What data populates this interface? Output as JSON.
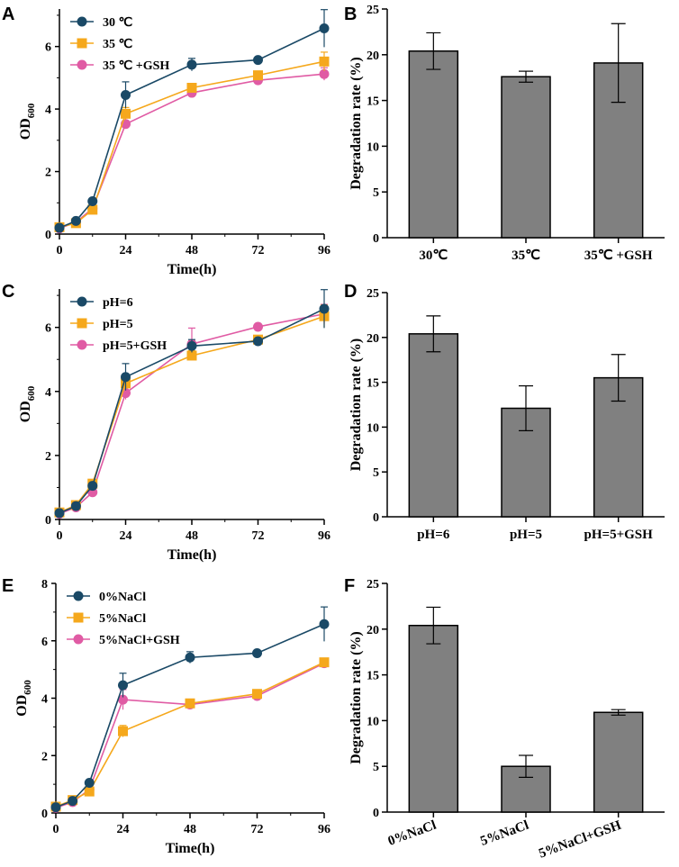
{
  "figure": {
    "panel_letters": [
      "A",
      "B",
      "C",
      "D",
      "E",
      "F"
    ]
  },
  "chart_data": [
    {
      "panel": "A",
      "type": "line",
      "xlabel": "Time(h)",
      "ylabel_main": "OD",
      "ylabel_sub": "600",
      "x": [
        0,
        6,
        12,
        24,
        48,
        72,
        96
      ],
      "xticks": [
        0,
        24,
        48,
        72,
        96
      ],
      "xlim": [
        0,
        96
      ],
      "yticks": [
        0,
        2,
        4,
        6
      ],
      "ylim": [
        0,
        7.2
      ],
      "legend_position": "top-left",
      "series": [
        {
          "name": "30 ℃",
          "color": "#1a4966",
          "marker": "circle",
          "values": [
            0.2,
            0.42,
            1.05,
            4.45,
            5.42,
            5.57,
            6.58
          ],
          "errors": [
            0.05,
            0.05,
            0.08,
            0.42,
            0.2,
            0.06,
            0.6
          ]
        },
        {
          "name": "35 ℃",
          "color": "#f5a81c",
          "marker": "square",
          "values": [
            0.22,
            0.35,
            0.78,
            3.85,
            4.68,
            5.08,
            5.52
          ],
          "errors": [
            0.05,
            0.05,
            0.05,
            0.2,
            0.1,
            0.08,
            0.3
          ]
        },
        {
          "name": "35 ℃ +GSH",
          "color": "#e05ba4",
          "marker": "circle",
          "values": [
            0.18,
            0.38,
            0.82,
            3.52,
            4.52,
            4.92,
            5.12
          ],
          "errors": [
            0.05,
            0.05,
            0.05,
            0.1,
            0.08,
            0.08,
            0.2
          ]
        }
      ]
    },
    {
      "panel": "B",
      "type": "bar",
      "ylabel": "Degradation rate (%)",
      "categories": [
        "30℃",
        "35℃",
        "35℃ +GSH"
      ],
      "values": [
        20.4,
        17.6,
        19.1
      ],
      "errors": [
        2.0,
        0.6,
        4.3
      ],
      "yticks": [
        0,
        5,
        10,
        15,
        20,
        25
      ],
      "ylim": [
        0,
        25
      ],
      "bar_color": "#808080"
    },
    {
      "panel": "C",
      "type": "line",
      "xlabel": "Time(h)",
      "ylabel_main": "OD",
      "ylabel_sub": "600",
      "x": [
        0,
        6,
        12,
        24,
        48,
        72,
        96
      ],
      "xticks": [
        0,
        24,
        48,
        72,
        96
      ],
      "xlim": [
        0,
        96
      ],
      "yticks": [
        0,
        2,
        4,
        6
      ],
      "ylim": [
        0,
        7.2
      ],
      "legend_position": "top-left",
      "series": [
        {
          "name": "pH=6",
          "color": "#1a4966",
          "marker": "circle",
          "values": [
            0.2,
            0.42,
            1.05,
            4.45,
            5.42,
            5.57,
            6.58
          ],
          "errors": [
            0.05,
            0.05,
            0.08,
            0.42,
            0.2,
            0.06,
            0.6
          ]
        },
        {
          "name": "pH=5",
          "color": "#f5a81c",
          "marker": "square",
          "values": [
            0.22,
            0.45,
            1.12,
            4.25,
            5.12,
            5.62,
            6.35
          ],
          "errors": [
            0.05,
            0.05,
            0.08,
            0.2,
            0.15,
            0.1,
            0.35
          ]
        },
        {
          "name": "pH=5+GSH",
          "color": "#e05ba4",
          "marker": "circle",
          "values": [
            0.18,
            0.38,
            0.85,
            3.95,
            5.48,
            6.02,
            6.42
          ],
          "errors": [
            0.05,
            0.05,
            0.05,
            0.2,
            0.5,
            0.08,
            0.3
          ]
        }
      ]
    },
    {
      "panel": "D",
      "type": "bar",
      "ylabel": "Degradation rate (%)",
      "categories": [
        "pH=6",
        "pH=5",
        "pH=5+GSH"
      ],
      "values": [
        20.4,
        12.1,
        15.5
      ],
      "errors": [
        2.0,
        2.5,
        2.6
      ],
      "yticks": [
        0,
        5,
        10,
        15,
        20,
        25
      ],
      "ylim": [
        0,
        25
      ],
      "bar_color": "#808080"
    },
    {
      "panel": "E",
      "type": "line",
      "xlabel": "Time(h)",
      "ylabel_main": "OD",
      "ylabel_sub": "600",
      "x": [
        0,
        6,
        12,
        24,
        48,
        72,
        96
      ],
      "xticks": [
        0,
        24,
        48,
        72,
        96
      ],
      "xlim": [
        0,
        96
      ],
      "yticks": [
        0,
        2,
        4,
        6,
        8
      ],
      "ylim": [
        0,
        8
      ],
      "legend_position": "top-left",
      "series": [
        {
          "name": "0%NaCl",
          "color": "#1a4966",
          "marker": "circle",
          "values": [
            0.2,
            0.42,
            1.05,
            4.45,
            5.42,
            5.57,
            6.58
          ],
          "errors": [
            0.05,
            0.05,
            0.08,
            0.42,
            0.2,
            0.06,
            0.6
          ]
        },
        {
          "name": "5%NaCl",
          "color": "#f5a81c",
          "marker": "square",
          "values": [
            0.22,
            0.45,
            0.75,
            2.85,
            3.82,
            4.15,
            5.25
          ],
          "errors": [
            0.05,
            0.05,
            0.05,
            0.2,
            0.1,
            0.1,
            0.1
          ]
        },
        {
          "name": "5%NaCl+GSH",
          "color": "#e05ba4",
          "marker": "circle",
          "values": [
            0.18,
            0.38,
            0.82,
            3.95,
            3.78,
            4.08,
            5.22
          ],
          "errors": [
            0.05,
            0.05,
            0.05,
            0.35,
            0.08,
            0.08,
            0.1
          ]
        }
      ]
    },
    {
      "panel": "F",
      "type": "bar",
      "ylabel": "Degradation rate (%)",
      "categories": [
        "0%NaCl",
        "5%NaCl",
        "5%NaCl+GSH"
      ],
      "values": [
        20.4,
        5.0,
        10.9
      ],
      "errors": [
        2.0,
        1.2,
        0.3
      ],
      "yticks": [
        0,
        5,
        10,
        15,
        20,
        25
      ],
      "ylim": [
        0,
        25
      ],
      "bar_color": "#808080"
    }
  ]
}
